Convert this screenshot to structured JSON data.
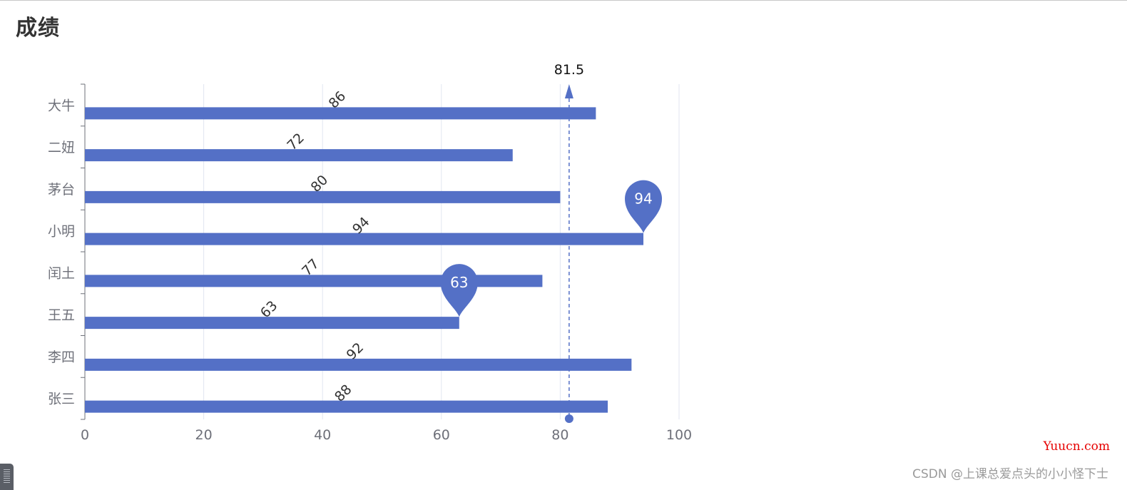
{
  "page": {
    "title": "成绩",
    "watermark_site": "Yuucn.com",
    "watermark_author": "CSDN @上课总爱点头的小小怪下士"
  },
  "colors": {
    "bar": "#5470c6",
    "axis_line": "#6e7079",
    "axis_label": "#6e7079",
    "grid_line": "#e0e6f1",
    "data_label": "#333333",
    "mark_label": "#ffffff",
    "avg_line": "#5470c6"
  },
  "chart_data": {
    "type": "bar",
    "orientation": "horizontal",
    "title": "成绩",
    "categories": [
      "张三",
      "李四",
      "王五",
      "闰土",
      "小明",
      "茅台",
      "二妞",
      "大牛"
    ],
    "series": [
      {
        "values": [
          88,
          92,
          63,
          77,
          94,
          80,
          72,
          86
        ]
      }
    ],
    "xlim": [
      0,
      100
    ],
    "x_ticks": [
      0,
      20,
      40,
      60,
      80,
      100
    ],
    "grid": true,
    "data_labels": "rotated 45deg, above bars",
    "mark_points": [
      {
        "type": "max",
        "category": "小明",
        "value": 94,
        "label": "94"
      },
      {
        "type": "min",
        "category": "王五",
        "value": 63,
        "label": "63"
      }
    ],
    "mark_line": {
      "type": "average",
      "value": 81.5,
      "label": "81.5"
    }
  }
}
